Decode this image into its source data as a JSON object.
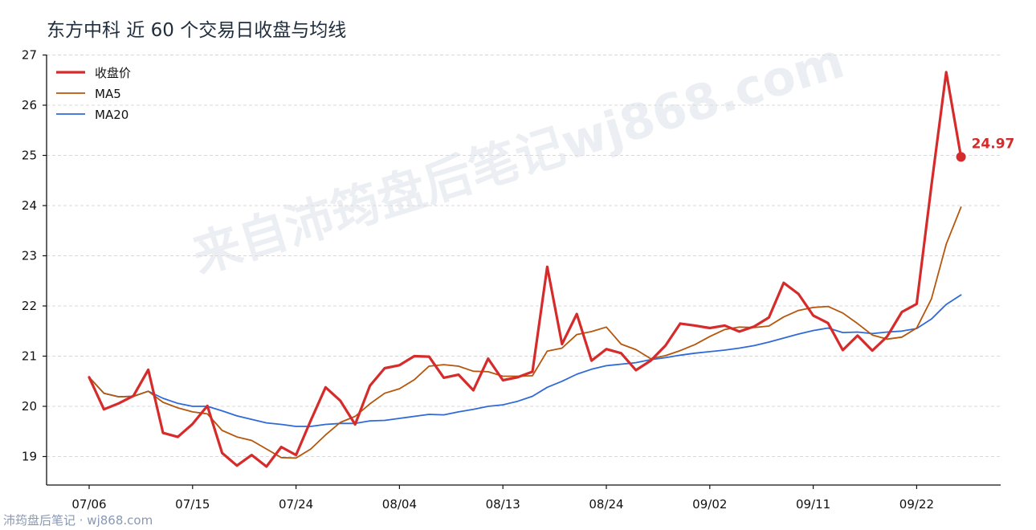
{
  "title": "东方中科 近 60 个交易日收盘与均线",
  "footer": "沛筠盘后笔记 · wj868.com",
  "watermark": "来自沛筠盘后笔记wj868.com",
  "colors": {
    "close": "#d62b2b",
    "ma5": "#b5560c",
    "ma20": "#2f6ad8",
    "grid": "#d9d9d9"
  },
  "chart_data": {
    "type": "line",
    "title": "东方中科 近 60 个交易日收盘与均线",
    "ylim": [
      18.6,
      27.0
    ],
    "yticks": [
      19,
      20,
      21,
      22,
      23,
      24,
      25,
      26,
      27
    ],
    "xtick_labels": [
      "07/06",
      "07/15",
      "07/24",
      "08/04",
      "08/13",
      "08/24",
      "09/02",
      "09/11",
      "09/22"
    ],
    "xtick_index": [
      0,
      7,
      14,
      21,
      28,
      35,
      42,
      49,
      56
    ],
    "grid": "horizontal",
    "legend_position": "top-left",
    "last_label": "24.97",
    "series": [
      {
        "name": "收盘价",
        "values": [
          20.58,
          19.94,
          20.06,
          20.21,
          20.73,
          19.47,
          19.39,
          19.65,
          20.01,
          19.07,
          18.82,
          19.03,
          18.8,
          19.19,
          19.03,
          19.72,
          20.38,
          20.11,
          19.64,
          20.41,
          20.76,
          20.82,
          21.0,
          20.99,
          20.57,
          20.63,
          20.32,
          20.95,
          20.52,
          20.58,
          20.69,
          22.78,
          21.24,
          21.84,
          20.91,
          21.14,
          21.06,
          20.72,
          20.91,
          21.21,
          21.65,
          21.61,
          21.56,
          21.61,
          21.49,
          21.59,
          21.77,
          22.46,
          22.24,
          21.81,
          21.66,
          21.12,
          21.41,
          21.11,
          21.39,
          21.88,
          22.04,
          24.4,
          26.66,
          24.97
        ]
      },
      {
        "name": "MA5",
        "values": [
          20.58,
          20.26,
          20.19,
          20.2,
          20.3,
          20.08,
          19.97,
          19.89,
          19.85,
          19.52,
          19.39,
          19.32,
          19.15,
          18.98,
          18.97,
          19.15,
          19.43,
          19.68,
          19.8,
          20.05,
          20.26,
          20.35,
          20.53,
          20.8,
          20.83,
          20.8,
          20.7,
          20.69,
          20.6,
          20.6,
          20.61,
          21.1,
          21.16,
          21.43,
          21.49,
          21.58,
          21.24,
          21.13,
          20.95,
          21.01,
          21.11,
          21.23,
          21.39,
          21.53,
          21.58,
          21.57,
          21.6,
          21.78,
          21.91,
          21.97,
          21.99,
          21.86,
          21.65,
          21.42,
          21.34,
          21.38,
          21.56,
          22.14,
          23.23,
          23.97
        ]
      },
      {
        "name": "MA20",
        "values": [
          20.58,
          20.26,
          20.19,
          20.2,
          20.3,
          20.16,
          20.06,
          20.0,
          20.0,
          19.91,
          19.81,
          19.74,
          19.67,
          19.64,
          19.6,
          19.6,
          19.64,
          19.66,
          19.66,
          19.71,
          19.72,
          19.76,
          19.8,
          19.84,
          19.83,
          19.89,
          19.94,
          20.0,
          20.03,
          20.1,
          20.2,
          20.38,
          20.5,
          20.64,
          20.74,
          20.81,
          20.84,
          20.87,
          20.93,
          20.97,
          21.02,
          21.06,
          21.09,
          21.12,
          21.16,
          21.21,
          21.28,
          21.36,
          21.44,
          21.51,
          21.56,
          21.47,
          21.48,
          21.45,
          21.48,
          21.5,
          21.55,
          21.74,
          22.03,
          22.22
        ]
      }
    ]
  }
}
